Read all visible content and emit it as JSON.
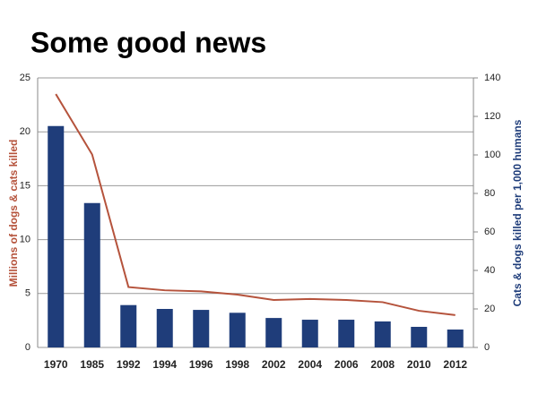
{
  "chart_data": {
    "type": "bar-line",
    "title": "Some good news",
    "y_label": "Millions of dogs & cats killed",
    "y2_label": "Cats & dogs killed per 1,000 humans",
    "categories": [
      "1970",
      "1985",
      "1992",
      "1994",
      "1996",
      "1998",
      "2002",
      "2004",
      "2006",
      "2008",
      "2010",
      "2012"
    ],
    "series": [
      {
        "type": "line",
        "color": "#b5533c",
        "values": [
          23.5,
          17.9,
          5.6,
          5.3,
          5.2,
          4.9,
          4.4,
          4.5,
          4.4,
          4.2,
          3.4,
          3.0
        ]
      },
      {
        "type": "bar",
        "axis": "y2",
        "color": "#1f3d7a",
        "values": [
          115,
          75,
          22,
          20,
          19.5,
          18,
          15.3,
          14.4,
          14.4,
          13.5,
          10.7,
          9.3
        ]
      }
    ],
    "ylim": [
      0,
      25
    ],
    "yticks": [
      0,
      5,
      10,
      15,
      20,
      25
    ],
    "y2lim": [
      0,
      140
    ],
    "y2ticks": [
      0,
      20,
      40,
      60,
      80,
      100,
      120,
      140
    ],
    "grid": true
  }
}
